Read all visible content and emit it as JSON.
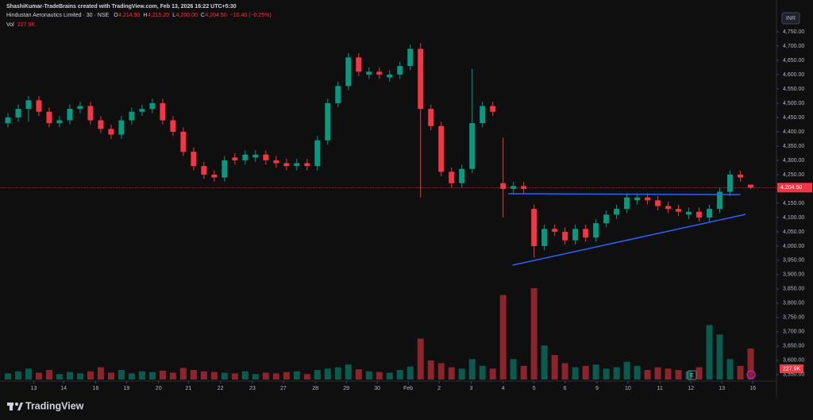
{
  "chart_data": {
    "type": "candlestick",
    "credit": "ShashiKumar-TradeBrains created with TradingView.com, Feb 13, 2026 16:22 UTC+5:30",
    "symbol": "Hindustan Aeronautics Limited · 30 · NSE",
    "ohlc_legend": [
      {
        "key": "O",
        "value": "4,214.90"
      },
      {
        "key": "H",
        "value": "4,215.20"
      },
      {
        "key": "L",
        "value": "4,200.00"
      },
      {
        "key": "C",
        "value": "4,204.50"
      }
    ],
    "change": "−10.40 (−0.25%)",
    "volume_title": "Vol",
    "volume_legend": "227.9K",
    "currency": "INR",
    "brand": "TradingView",
    "up_color": "#089981",
    "down_color": "#f23645",
    "drawing_color": "#2962ff",
    "open": [
      4430,
      4450,
      4480,
      4510,
      4470,
      4430,
      4440,
      4480,
      4490,
      4440,
      4410,
      4390,
      4440,
      4470,
      4480,
      4500,
      4440,
      4400,
      4330,
      4280,
      4250,
      4240,
      4310,
      4300,
      4310,
      4320,
      4300,
      4290,
      4280,
      4290,
      4280,
      4370,
      4500,
      4560,
      4660,
      4600,
      4610,
      4590,
      4600,
      4630,
      4690,
      4480,
      4420,
      4260,
      4220,
      4270,
      4430,
      4490,
      4220,
      4200,
      4210,
      4130,
      4000,
      4060,
      4050,
      4020,
      4060,
      4030,
      4080,
      4110,
      4130,
      4160,
      4170,
      4160,
      4140,
      4130,
      4110,
      4120,
      4100,
      4130,
      4190,
      4250,
      4214.9
    ],
    "high": [
      4465,
      4495,
      4525,
      4525,
      4485,
      4455,
      4495,
      4505,
      4505,
      4455,
      4425,
      4455,
      4485,
      4495,
      4515,
      4515,
      4455,
      4415,
      4345,
      4295,
      4265,
      4315,
      4325,
      4335,
      4335,
      4335,
      4315,
      4305,
      4305,
      4305,
      4385,
      4515,
      4575,
      4675,
      4675,
      4625,
      4625,
      4615,
      4645,
      4705,
      4710,
      4495,
      4435,
      4275,
      4285,
      4620,
      4505,
      4505,
      4380,
      4225,
      4225,
      4145,
      4075,
      4075,
      4065,
      4075,
      4075,
      4095,
      4125,
      4145,
      4185,
      4185,
      4185,
      4175,
      4155,
      4145,
      4135,
      4135,
      4145,
      4205,
      4265,
      4265,
      4215.2
    ],
    "low": [
      4415,
      4435,
      4435,
      4455,
      4415,
      4415,
      4425,
      4465,
      4425,
      4395,
      4375,
      4375,
      4425,
      4455,
      4465,
      4425,
      4385,
      4315,
      4265,
      4235,
      4225,
      4225,
      4285,
      4285,
      4295,
      4285,
      4275,
      4265,
      4265,
      4265,
      4265,
      4355,
      4485,
      4545,
      4595,
      4585,
      4585,
      4575,
      4585,
      4615,
      4170,
      4405,
      4245,
      4205,
      4205,
      4255,
      4415,
      4455,
      4100,
      4185,
      4185,
      3960,
      3985,
      4035,
      4005,
      4005,
      4015,
      4015,
      4065,
      4095,
      4115,
      4145,
      4145,
      4125,
      4115,
      4105,
      4095,
      4085,
      4085,
      4115,
      4175,
      4225,
      4200
    ],
    "close": [
      4450,
      4480,
      4510,
      4470,
      4430,
      4440,
      4480,
      4490,
      4440,
      4410,
      4390,
      4440,
      4470,
      4480,
      4500,
      4440,
      4400,
      4330,
      4280,
      4250,
      4240,
      4300,
      4300,
      4320,
      4320,
      4300,
      4290,
      4280,
      4290,
      4280,
      4370,
      4500,
      4560,
      4660,
      4610,
      4610,
      4600,
      4600,
      4630,
      4690,
      4480,
      4420,
      4260,
      4220,
      4270,
      4430,
      4490,
      4470,
      4200,
      4210,
      4200,
      4000,
      4060,
      4050,
      4020,
      4060,
      4030,
      4080,
      4110,
      4130,
      4170,
      4170,
      4160,
      4140,
      4130,
      4120,
      4120,
      4100,
      4130,
      4190,
      4250,
      4240,
      4204.5
    ],
    "volume": [
      45000,
      60000,
      80000,
      50000,
      70000,
      40000,
      55000,
      45000,
      60000,
      90000,
      50000,
      70000,
      45000,
      60000,
      55000,
      65000,
      50000,
      85000,
      70000,
      60000,
      55000,
      50000,
      45000,
      60000,
      40000,
      50000,
      45000,
      55000,
      60000,
      40000,
      70000,
      80000,
      90000,
      110000,
      75000,
      60000,
      55000,
      50000,
      70000,
      95000,
      300000,
      140000,
      120000,
      90000,
      80000,
      150000,
      100000,
      80000,
      620000,
      150000,
      100000,
      670000,
      250000,
      180000,
      120000,
      90000,
      100000,
      110000,
      80000,
      90000,
      130000,
      100000,
      70000,
      90000,
      80000,
      70000,
      60000,
      90000,
      400000,
      330000,
      150000,
      100000,
      227900
    ],
    "price_line": {
      "value": 4204.5,
      "label": "4,204.50"
    },
    "drawings": [
      {
        "x": [
          48.5,
          71.0
        ],
        "y": [
          4183,
          4180
        ]
      },
      {
        "x": [
          48.9,
          71.5
        ],
        "y": [
          3933,
          4111
        ]
      }
    ],
    "xlim": [
      -0.77,
      74.5
    ],
    "ylim": [
      3533,
      4861
    ],
    "xticks": [
      {
        "value": 2.5,
        "label": "13"
      },
      {
        "value": 5.4,
        "label": "14"
      },
      {
        "value": 8.5,
        "label": "16"
      },
      {
        "value": 11.5,
        "label": "19"
      },
      {
        "value": 14.6,
        "label": "20"
      },
      {
        "value": 17.5,
        "label": "21"
      },
      {
        "value": 20.6,
        "label": "22"
      },
      {
        "value": 23.7,
        "label": "23"
      },
      {
        "value": 26.7,
        "label": "27"
      },
      {
        "value": 29.8,
        "label": "28"
      },
      {
        "value": 32.8,
        "label": "29"
      },
      {
        "value": 35.8,
        "label": "30"
      },
      {
        "value": 38.8,
        "label": "Feb"
      },
      {
        "value": 41.8,
        "label": "2"
      },
      {
        "value": 44.9,
        "label": "3"
      },
      {
        "value": 48.0,
        "label": "4"
      },
      {
        "value": 51.0,
        "label": "5"
      },
      {
        "value": 54.0,
        "label": "6"
      },
      {
        "value": 57.1,
        "label": "9"
      },
      {
        "value": 60.1,
        "label": "10"
      },
      {
        "value": 63.2,
        "label": "11"
      },
      {
        "value": 66.2,
        "label": "12"
      },
      {
        "value": 69.2,
        "label": "13"
      },
      {
        "value": 72.2,
        "label": "16"
      }
    ],
    "yticks": [
      {
        "value": 4750,
        "label": "4,750.00"
      },
      {
        "value": 4700,
        "label": "4,700.00"
      },
      {
        "value": 4650,
        "label": "4,650.00"
      },
      {
        "value": 4600,
        "label": "4,600.00"
      },
      {
        "value": 4550,
        "label": "4,550.00"
      },
      {
        "value": 4500,
        "label": "4,500.00"
      },
      {
        "value": 4450,
        "label": "4,450.00"
      },
      {
        "value": 4400,
        "label": "4,400.00"
      },
      {
        "value": 4350,
        "label": "4,350.00"
      },
      {
        "value": 4300,
        "label": "4,300.00"
      },
      {
        "value": 4250,
        "label": "4,250.00"
      },
      {
        "value": 4200,
        "label": "4,200.00"
      },
      {
        "value": 4150,
        "label": "4,150.00"
      },
      {
        "value": 4100,
        "label": "4,100.00"
      },
      {
        "value": 4050,
        "label": "4,050.00"
      },
      {
        "value": 4000,
        "label": "4,000.00"
      },
      {
        "value": 3950,
        "label": "3,950.00"
      },
      {
        "value": 3900,
        "label": "3,900.00"
      },
      {
        "value": 3850,
        "label": "3,850.00"
      },
      {
        "value": 3800,
        "label": "3,800.00"
      },
      {
        "value": 3750,
        "label": "3,750.00"
      },
      {
        "value": 3700,
        "label": "3,700.00"
      },
      {
        "value": 3650,
        "label": "3,650.00"
      },
      {
        "value": 3600,
        "label": "3,600.00"
      },
      {
        "value": 3550,
        "label": "3,550.00"
      }
    ]
  }
}
